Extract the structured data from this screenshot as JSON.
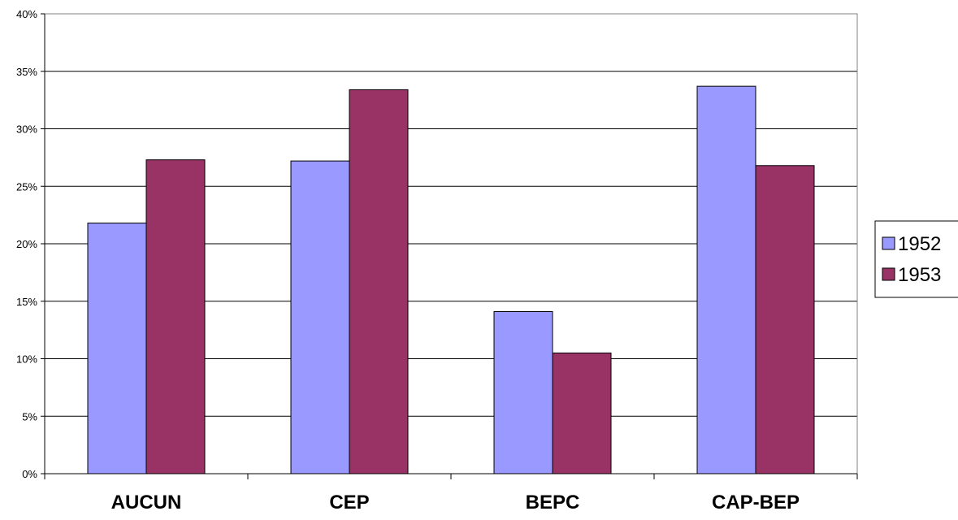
{
  "chart_data": {
    "type": "bar",
    "categories": [
      "AUCUN",
      "CEP",
      "BEPC",
      "CAP-BEP"
    ],
    "series": [
      {
        "name": "1952",
        "values": [
          21.8,
          27.2,
          14.1,
          33.7
        ],
        "color": "#9999ff"
      },
      {
        "name": "1953",
        "values": [
          27.3,
          33.4,
          10.5,
          26.8
        ],
        "color": "#993366"
      }
    ],
    "ylim": [
      0,
      40
    ],
    "yticks": [
      0,
      5,
      10,
      15,
      20,
      25,
      30,
      35,
      40
    ],
    "ytick_format": "percent",
    "grid": true,
    "legend": "right",
    "title": "",
    "xlabel": "",
    "ylabel": ""
  }
}
